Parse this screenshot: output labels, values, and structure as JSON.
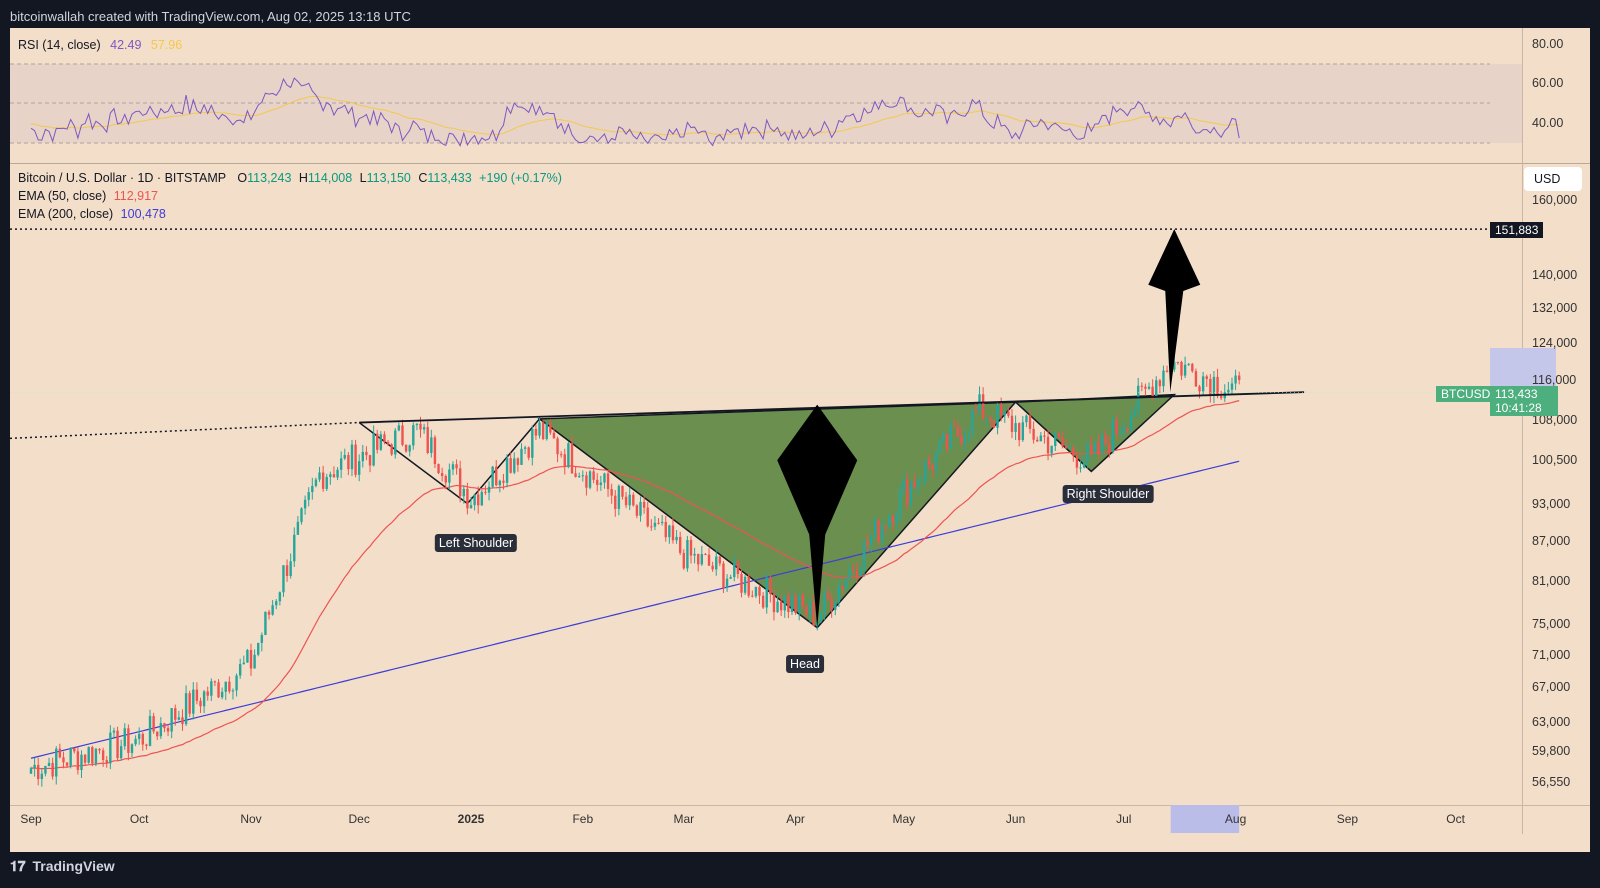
{
  "header": {
    "caption": "bitcoinwallah created with TradingView.com, Aug 02, 2025 13:18 UTC"
  },
  "rsi": {
    "label": "RSI (14, close)",
    "value": "42.49",
    "ma_value": "57.96",
    "ticks": [
      "80.00",
      "60.00",
      "40.00"
    ],
    "line_color": "#7e57c2",
    "ma_color": "#f2c94c"
  },
  "legend": {
    "symbol": "Bitcoin / U.S. Dollar · 1D · BITSTAMP",
    "o_label": "O",
    "o": "113,243",
    "h_label": "H",
    "h": "114,008",
    "l_label": "L",
    "l": "113,150",
    "c_label": "C",
    "c": "113,433",
    "change": "+190 (+0.17%)",
    "ema50_label": "EMA (50, close)",
    "ema50": "112,917",
    "ema200_label": "EMA (200, close)",
    "ema200": "100,478"
  },
  "axis": {
    "currency": "USD",
    "yticks": [
      "160,000",
      "140,000",
      "132,000",
      "124,000",
      "116,000",
      "108,000",
      "100,500",
      "93,000",
      "87,000",
      "81,000",
      "75,000",
      "71,000",
      "67,000",
      "63,000",
      "59,800",
      "56,550"
    ],
    "target_label": "151,883",
    "symbol_tag": "BTCUSD",
    "price_tag": "113,433",
    "countdown": "10:41:28",
    "xticks": [
      "Sep",
      "Oct",
      "Nov",
      "Dec",
      "2025",
      "Feb",
      "Mar",
      "Apr",
      "May",
      "Jun",
      "Jul",
      "Aug",
      "Sep",
      "Oct"
    ]
  },
  "annotations": {
    "left_shoulder": "Left Shoulder",
    "head": "Head",
    "right_shoulder": "Right Shoulder"
  },
  "colors": {
    "up": "#26a69a",
    "down": "#ef5350",
    "ema50": "#ef5350",
    "ema200": "#3d3dd6",
    "pattern_fill": "#6b8f4e",
    "background": "#f3dec9"
  },
  "footer": {
    "brand": "TradingView"
  },
  "chart_data": {
    "type": "candlestick",
    "symbol": "BTCUSD",
    "x_range": [
      "Sep",
      "Oct"
    ],
    "y_scale": "log",
    "y_range": [
      54000,
      170000
    ],
    "anchor_prices": [
      {
        "date": "2024-09-01",
        "close": 58000
      },
      {
        "date": "2024-10-01",
        "close": 61000
      },
      {
        "date": "2024-11-01",
        "close": 70000
      },
      {
        "date": "2024-11-20",
        "close": 98000
      },
      {
        "date": "2024-12-17",
        "close": 106000
      },
      {
        "date": "2025-01-01",
        "close": 94000
      },
      {
        "date": "2025-01-20",
        "close": 106000
      },
      {
        "date": "2025-02-01",
        "close": 99000
      },
      {
        "date": "2025-03-01",
        "close": 85000
      },
      {
        "date": "2025-04-07",
        "close": 76000
      },
      {
        "date": "2025-05-01",
        "close": 95000
      },
      {
        "date": "2025-05-22",
        "close": 110000
      },
      {
        "date": "2025-06-22",
        "close": 100500
      },
      {
        "date": "2025-07-14",
        "close": 120000
      },
      {
        "date": "2025-08-02",
        "close": 113433
      }
    ],
    "ema50_last": 112917,
    "ema200_last": 100478,
    "target": 151883,
    "pattern": "inverse head and shoulders"
  }
}
